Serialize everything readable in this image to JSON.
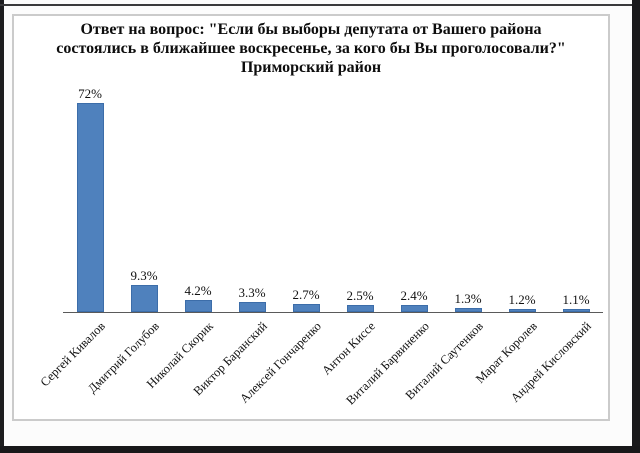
{
  "chart_data": {
    "type": "bar",
    "title": "Ответ на вопрос: \"Если бы выборы депутата от Вашего района состоялись в ближайшее воскресенье, за кого бы Вы проголосовали?\" Приморский район",
    "categories": [
      "Сергей Кивалов",
      "Дмитрий Голубов",
      "Николай Скорик",
      "Виктор Баранский",
      "Алексей Гончаренко",
      "Антон Киссе",
      "Виталий Барвиненко",
      "Виталий Саутенков",
      "Марат Королев",
      "Андрей Кисловский"
    ],
    "values": [
      72,
      9.3,
      4.2,
      3.3,
      2.7,
      2.5,
      2.4,
      1.3,
      1.2,
      1.1
    ],
    "value_labels": [
      "72%",
      "9.3%",
      "4.2%",
      "3.3%",
      "2.7%",
      "2.5%",
      "2.4%",
      "1.3%",
      "1.2%",
      "1.1%"
    ],
    "xlabel": "",
    "ylabel": "",
    "ylim": [
      0,
      75
    ],
    "grid": false,
    "legend": false,
    "bar_color": "#4f81bd",
    "bar_border_color": "#3c6da9",
    "axis_color": "#5a5a5a"
  },
  "colors": {
    "chart_box_border": "#cbcbcb",
    "photo_frame": "#1b1b1d",
    "page_background": "#fcfcfc"
  }
}
